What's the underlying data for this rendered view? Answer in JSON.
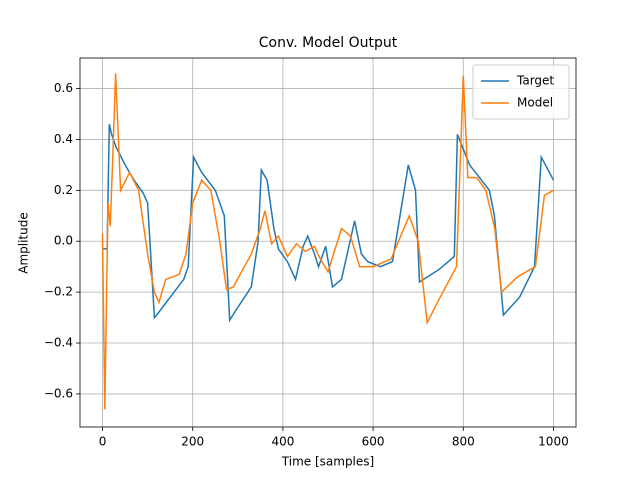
{
  "chart_data": {
    "type": "line",
    "title": "Conv. Model Output",
    "x_label": "Time [samples]",
    "y_label": "Amplitude",
    "xlim": [
      -50,
      1050
    ],
    "ylim": [
      -0.73,
      0.72
    ],
    "xticks": [
      0,
      200,
      400,
      600,
      800,
      1000
    ],
    "yticks": [
      {
        "value": -0.6,
        "label": "−0.6"
      },
      {
        "value": -0.4,
        "label": "−0.4"
      },
      {
        "value": -0.2,
        "label": "−0.2"
      },
      {
        "value": 0,
        "label": "0.0"
      },
      0.2,
      0.4,
      0.6
    ],
    "grid": true,
    "legend": "upper right",
    "series": [
      {
        "name": "Target",
        "color": "#1f77b4",
        "x": [
          0,
          10,
          15,
          20,
          30,
          50,
          70,
          90,
          100,
          105,
          115,
          120,
          150,
          180,
          190,
          202,
          220,
          250,
          270,
          282,
          300,
          330,
          345,
          352,
          365,
          380,
          390,
          410,
          428,
          445,
          455,
          470,
          479,
          495,
          510,
          530,
          559,
          574,
          588,
          616,
          643,
          678,
          694,
          703,
          747,
          780,
          787,
          814,
          858,
          869,
          889,
          925,
          958,
          973,
          1000
        ],
        "values": [
          -0.03,
          -0.03,
          0.46,
          0.42,
          0.37,
          0.3,
          0.24,
          0.19,
          0.15,
          0.0,
          -0.3,
          -0.29,
          -0.22,
          -0.15,
          -0.1,
          0.33,
          0.27,
          0.2,
          0.1,
          -0.31,
          -0.26,
          -0.18,
          0.0,
          0.28,
          0.24,
          0.05,
          -0.03,
          -0.08,
          -0.15,
          -0.02,
          0.02,
          -0.05,
          -0.1,
          -0.02,
          -0.18,
          -0.15,
          0.08,
          -0.05,
          -0.08,
          -0.1,
          -0.08,
          0.3,
          0.2,
          -0.16,
          -0.11,
          -0.06,
          0.42,
          0.3,
          0.2,
          0.1,
          -0.29,
          -0.22,
          -0.1,
          0.33,
          0.24
        ]
      },
      {
        "name": "Model",
        "color": "#ff7f0e",
        "x": [
          0,
          5,
          12,
          17,
          22,
          29,
          40,
          60,
          80,
          100,
          115,
          125,
          140,
          170,
          185,
          200,
          220,
          240,
          260,
          275,
          290,
          330,
          350,
          360,
          375,
          390,
          410,
          430,
          450,
          470,
          480,
          500,
          530,
          550,
          570,
          600,
          640,
          680,
          700,
          720,
          740,
          770,
          785,
          800,
          810,
          830,
          850,
          870,
          885,
          920,
          960,
          980,
          1000
        ],
        "values": [
          0.03,
          -0.66,
          0.15,
          0.06,
          0.3,
          0.66,
          0.2,
          0.27,
          0.2,
          -0.05,
          -0.2,
          -0.24,
          -0.15,
          -0.13,
          -0.05,
          0.15,
          0.24,
          0.2,
          0.0,
          -0.19,
          -0.18,
          -0.05,
          0.05,
          0.12,
          -0.01,
          0.02,
          -0.06,
          -0.01,
          -0.04,
          -0.02,
          -0.06,
          -0.12,
          0.05,
          0.02,
          -0.1,
          -0.1,
          -0.07,
          0.1,
          0.0,
          -0.32,
          -0.25,
          -0.15,
          -0.1,
          0.65,
          0.25,
          0.25,
          0.2,
          0.05,
          -0.2,
          -0.14,
          -0.1,
          0.18,
          0.2
        ]
      }
    ]
  }
}
